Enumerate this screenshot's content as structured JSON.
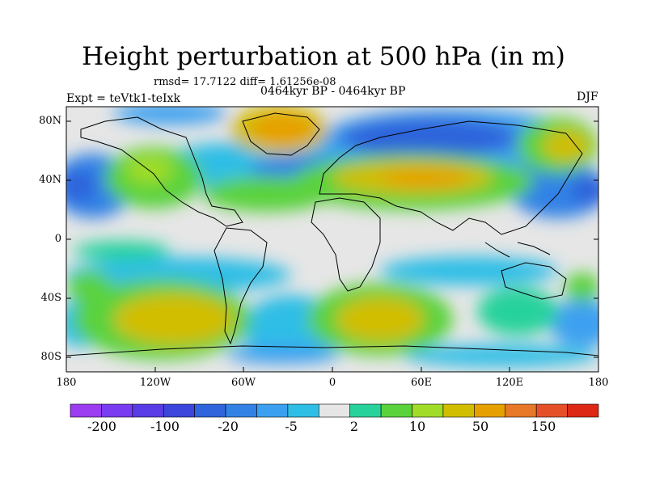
{
  "title": "Height perturbation at 500 hPa (in m)",
  "stats_line": "rmsd= 17.7122 diff= 1.61256e-08",
  "period_line": "0464kyr BP - 0464kyr BP",
  "experiment_label": "Expt = teVtk1-teIxk",
  "season_label": "DJF",
  "map": {
    "lat_ticks": [
      "80N",
      "40N",
      "0",
      "40S",
      "80S"
    ],
    "lon_ticks": [
      "180",
      "120W",
      "60W",
      "0",
      "60E",
      "120E",
      "180"
    ]
  },
  "colorbar": {
    "colors": [
      "#9b3cf0",
      "#7a3cf0",
      "#5a3ce6",
      "#3c46dc",
      "#2f64dc",
      "#3282e6",
      "#3ca0f0",
      "#2fbee6",
      "#e6e6e6",
      "#28d29b",
      "#5ad23c",
      "#a0dc28",
      "#d2be00",
      "#e6a000",
      "#e67828",
      "#e65028",
      "#dc2814"
    ],
    "labels": [
      "-200",
      "-100",
      "-20",
      "-5",
      "2",
      "10",
      "50",
      "150"
    ]
  }
}
